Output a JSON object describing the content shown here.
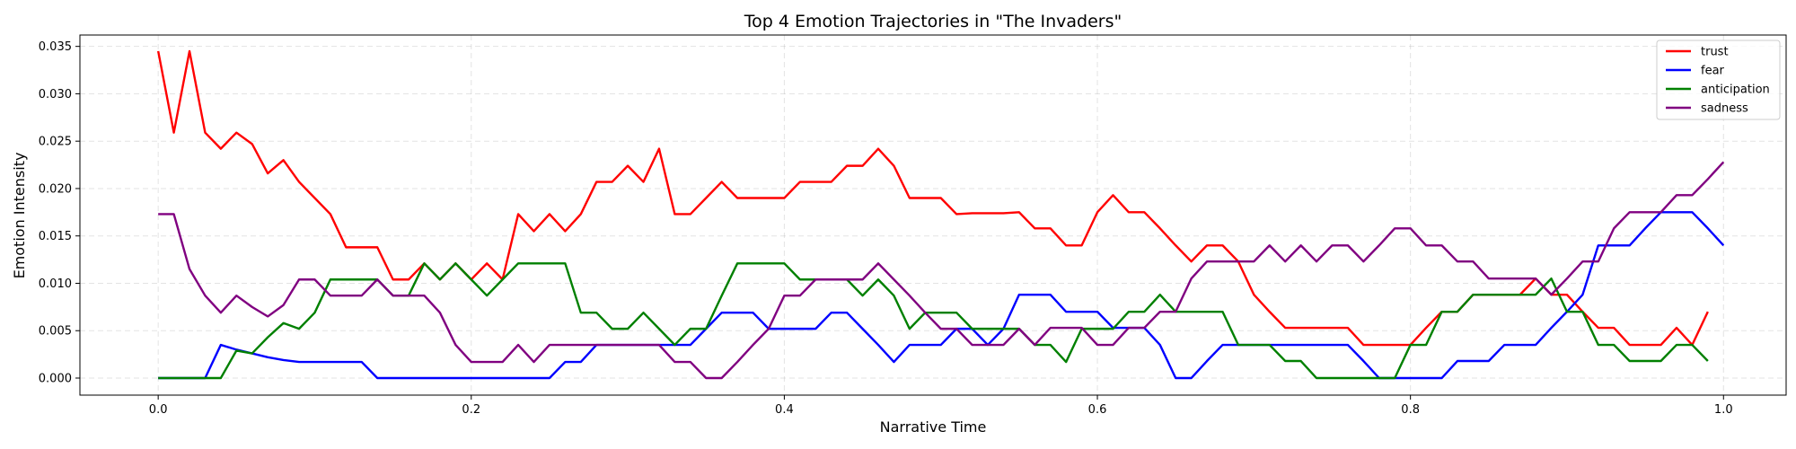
{
  "chart_data": {
    "type": "line",
    "title": "Top 4 Emotion Trajectories in \"The Invaders\"",
    "xlabel": "Narrative Time",
    "ylabel": "Emotion Intensity",
    "xlim": [
      -0.05,
      1.04
    ],
    "ylim": [
      -0.0018,
      0.0362
    ],
    "xticks": [
      0.0,
      0.2,
      0.4,
      0.6,
      0.8,
      1.0
    ],
    "xtick_labels": [
      "0.0",
      "0.2",
      "0.4",
      "0.6",
      "0.8",
      "1.0"
    ],
    "yticks": [
      0.0,
      0.005,
      0.01,
      0.015,
      0.02,
      0.025,
      0.03,
      0.035
    ],
    "ytick_labels": [
      "0.000",
      "0.005",
      "0.010",
      "0.015",
      "0.020",
      "0.025",
      "0.030",
      "0.035"
    ],
    "grid": true,
    "legend_position": "top-right",
    "x_start": 0.0,
    "x_step": 0.01,
    "series": [
      {
        "name": "trust",
        "color": "#ff0000",
        "values": [
          0.0345,
          0.0259,
          0.0345,
          0.0259,
          0.0242,
          0.0259,
          0.0247,
          0.0216,
          0.023,
          0.0207,
          0.019,
          0.0173,
          0.0138,
          0.0138,
          0.0138,
          0.0104,
          0.0104,
          0.0121,
          0.0104,
          0.0121,
          0.0104,
          0.0121,
          0.0104,
          0.0173,
          0.0155,
          0.0173,
          0.0155,
          0.0173,
          0.0207,
          0.0207,
          0.0224,
          0.0207,
          0.0242,
          0.0173,
          0.0173,
          0.019,
          0.0207,
          0.019,
          0.019,
          0.019,
          0.019,
          0.0207,
          0.0207,
          0.0207,
          0.0224,
          0.0224,
          0.0242,
          0.0224,
          0.019,
          0.019,
          0.019,
          0.0173,
          0.0174,
          0.0174,
          0.0174,
          0.0175,
          0.0158,
          0.0158,
          0.014,
          0.014,
          0.0175,
          0.0193,
          0.0175,
          0.0175,
          0.0158,
          0.014,
          0.0123,
          0.014,
          0.014,
          0.0123,
          0.0088,
          0.007,
          0.0053,
          0.0053,
          0.0053,
          0.0053,
          0.0053,
          0.0035,
          0.0035,
          0.0035,
          0.0035,
          0.0053,
          0.007,
          0.007,
          0.0088,
          0.0088,
          0.0088,
          0.0088,
          0.0105,
          0.0088,
          0.0088,
          0.007,
          0.0053,
          0.0053,
          0.0035,
          0.0035,
          0.0035,
          0.0053,
          0.0035,
          0.007
        ]
      },
      {
        "name": "fear",
        "color": "#0000ff",
        "values": [
          0.0,
          0.0,
          0.0,
          0.0,
          0.0035,
          0.003,
          0.0026,
          0.0022,
          0.0019,
          0.0017,
          0.0017,
          0.0017,
          0.0017,
          0.0017,
          0.0,
          0.0,
          0.0,
          0.0,
          0.0,
          0.0,
          0.0,
          0.0,
          0.0,
          0.0,
          0.0,
          0.0,
          0.0017,
          0.0017,
          0.0035,
          0.0035,
          0.0035,
          0.0035,
          0.0035,
          0.0035,
          0.0035,
          0.0052,
          0.0069,
          0.0069,
          0.0069,
          0.0052,
          0.0052,
          0.0052,
          0.0052,
          0.0069,
          0.0069,
          0.0052,
          0.0035,
          0.0017,
          0.0035,
          0.0035,
          0.0035,
          0.0052,
          0.0052,
          0.0035,
          0.0052,
          0.0088,
          0.0088,
          0.0088,
          0.007,
          0.007,
          0.007,
          0.0053,
          0.0053,
          0.0053,
          0.0035,
          0.0,
          0.0,
          0.0018,
          0.0035,
          0.0035,
          0.0035,
          0.0035,
          0.0035,
          0.0035,
          0.0035,
          0.0035,
          0.0035,
          0.0018,
          0.0,
          0.0,
          0.0,
          0.0,
          0.0,
          0.0018,
          0.0018,
          0.0018,
          0.0035,
          0.0035,
          0.0035,
          0.0053,
          0.007,
          0.0088,
          0.014,
          0.014,
          0.014,
          0.0158,
          0.0175,
          0.0175,
          0.0175,
          0.0158,
          0.014
        ]
      },
      {
        "name": "anticipation",
        "color": "#008000",
        "values": [
          0.0,
          0.0,
          0.0,
          0.0,
          0.0,
          0.0029,
          0.0026,
          0.0043,
          0.0058,
          0.0052,
          0.0069,
          0.0104,
          0.0104,
          0.0104,
          0.0104,
          0.0087,
          0.0087,
          0.0121,
          0.0104,
          0.0121,
          0.0104,
          0.0087,
          0.0104,
          0.0121,
          0.0121,
          0.0121,
          0.0121,
          0.0069,
          0.0069,
          0.0052,
          0.0052,
          0.0069,
          0.0052,
          0.0035,
          0.0052,
          0.0052,
          0.0087,
          0.0121,
          0.0121,
          0.0121,
          0.0121,
          0.0104,
          0.0104,
          0.0104,
          0.0104,
          0.0087,
          0.0104,
          0.0087,
          0.0052,
          0.0069,
          0.0069,
          0.0069,
          0.0052,
          0.0052,
          0.0052,
          0.0052,
          0.0035,
          0.0035,
          0.0017,
          0.0052,
          0.0052,
          0.0052,
          0.007,
          0.007,
          0.0088,
          0.007,
          0.007,
          0.007,
          0.007,
          0.0035,
          0.0035,
          0.0035,
          0.0018,
          0.0018,
          0.0,
          0.0,
          0.0,
          0.0,
          0.0,
          0.0,
          0.0035,
          0.0035,
          0.007,
          0.007,
          0.0088,
          0.0088,
          0.0088,
          0.0088,
          0.0088,
          0.0105,
          0.007,
          0.007,
          0.0035,
          0.0035,
          0.0018,
          0.0018,
          0.0018,
          0.0035,
          0.0035,
          0.0018
        ]
      },
      {
        "name": "sadness",
        "color": "#800080",
        "values": [
          0.0173,
          0.0173,
          0.0115,
          0.0087,
          0.0069,
          0.0087,
          0.0075,
          0.0065,
          0.0077,
          0.0104,
          0.0104,
          0.0087,
          0.0087,
          0.0087,
          0.0104,
          0.0087,
          0.0087,
          0.0087,
          0.0069,
          0.0035,
          0.0017,
          0.0017,
          0.0017,
          0.0035,
          0.0017,
          0.0035,
          0.0035,
          0.0035,
          0.0035,
          0.0035,
          0.0035,
          0.0035,
          0.0035,
          0.0017,
          0.0017,
          0.0,
          0.0,
          0.0017,
          0.0035,
          0.0052,
          0.0087,
          0.0087,
          0.0104,
          0.0104,
          0.0104,
          0.0104,
          0.0121,
          0.0104,
          0.0087,
          0.0069,
          0.0052,
          0.0052,
          0.0035,
          0.0035,
          0.0035,
          0.0052,
          0.0035,
          0.0053,
          0.0053,
          0.0053,
          0.0035,
          0.0035,
          0.0053,
          0.0053,
          0.007,
          0.007,
          0.0105,
          0.0123,
          0.0123,
          0.0123,
          0.0123,
          0.014,
          0.0123,
          0.014,
          0.0123,
          0.014,
          0.014,
          0.0123,
          0.014,
          0.0158,
          0.0158,
          0.014,
          0.014,
          0.0123,
          0.0123,
          0.0105,
          0.0105,
          0.0105,
          0.0105,
          0.0088,
          0.0105,
          0.0123,
          0.0123,
          0.0158,
          0.0175,
          0.0175,
          0.0175,
          0.0193,
          0.0193,
          0.021,
          0.0228
        ]
      }
    ]
  }
}
